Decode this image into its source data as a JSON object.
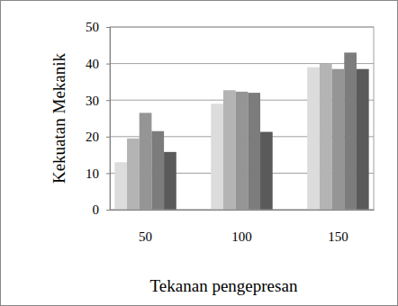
{
  "chart_data": {
    "type": "bar",
    "x_label": "Tekanan pengepresan",
    "y_label": "Kekuatan Mekanik",
    "categories": [
      "50",
      "100",
      "150"
    ],
    "series": [
      {
        "color": "#dcdcdc",
        "values": [
          13,
          29,
          39
        ]
      },
      {
        "color": "#b4b4b4",
        "values": [
          19.5,
          32.7,
          40
        ]
      },
      {
        "color": "#959595",
        "values": [
          26.5,
          32.3,
          38.5
        ]
      },
      {
        "color": "#7c7c7c",
        "values": [
          21.5,
          32,
          43
        ]
      },
      {
        "color": "#5a5a5a",
        "values": [
          15.8,
          21.3,
          38.5
        ]
      }
    ],
    "ylim": [
      0,
      50
    ],
    "yticks": [
      0,
      10,
      20,
      30,
      40,
      50
    ],
    "grid": true
  }
}
